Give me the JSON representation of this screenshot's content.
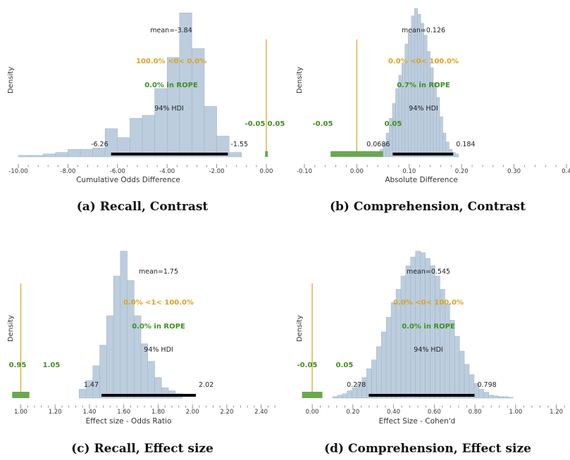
{
  "colors": {
    "bar_fill": "#bccddd",
    "bar_stroke": "#9eb3c9",
    "hdi": "#000000",
    "ref_line": "#e0ae3a",
    "rope": "#6aa84f",
    "rope_text": "#3f8f1f",
    "ref_text": "#e0a020",
    "axis_text": "#333333"
  },
  "chart_data": [
    {
      "type": "histogram",
      "panel_id": "a",
      "caption": "(a) Recall, Contrast",
      "ylabel": "Density",
      "xlabel": "Cumulative Odds Difference",
      "xlim": [
        -10.0,
        0.0
      ],
      "xticks": [
        "-10.00",
        "-8.00",
        "-6.00",
        "-4.00",
        "-2.00",
        "0.00"
      ],
      "xtick_values": [
        -10,
        -8,
        -6,
        -4,
        -2,
        0
      ],
      "bins": [
        {
          "x0": -10.0,
          "x1": -9.5,
          "d": 0.01
        },
        {
          "x0": -9.5,
          "x1": -9.0,
          "d": 0.01
        },
        {
          "x0": -9.0,
          "x1": -8.5,
          "d": 0.02
        },
        {
          "x0": -8.5,
          "x1": -8.0,
          "d": 0.03
        },
        {
          "x0": -8.0,
          "x1": -7.5,
          "d": 0.05
        },
        {
          "x0": -7.5,
          "x1": -7.0,
          "d": 0.05
        },
        {
          "x0": -7.0,
          "x1": -6.5,
          "d": 0.06
        },
        {
          "x0": -6.5,
          "x1": -6.0,
          "d": 0.19
        },
        {
          "x0": -6.0,
          "x1": -5.5,
          "d": 0.13
        },
        {
          "x0": -5.5,
          "x1": -5.0,
          "d": 0.26
        },
        {
          "x0": -5.0,
          "x1": -4.5,
          "d": 0.28
        },
        {
          "x0": -4.5,
          "x1": -4.0,
          "d": 0.46
        },
        {
          "x0": -4.0,
          "x1": -3.5,
          "d": 0.67
        },
        {
          "x0": -3.5,
          "x1": -3.0,
          "d": 0.97
        },
        {
          "x0": -3.0,
          "x1": -2.5,
          "d": 0.73
        },
        {
          "x0": -2.5,
          "x1": -2.0,
          "d": 0.34
        },
        {
          "x0": -2.0,
          "x1": -1.5,
          "d": 0.14
        },
        {
          "x0": -1.5,
          "x1": -1.0,
          "d": 0.03
        }
      ],
      "hdi": [
        -6.26,
        -1.55
      ],
      "hdi_labels": [
        "-6.26",
        "-1.55"
      ],
      "hdi_title": "94% HDI",
      "mean_label": "mean=-3.84",
      "ref_value": 0.0,
      "ref_text": "100.0% <0< 0.0%",
      "rope": [
        -0.05,
        0.05
      ],
      "rope_labels": [
        "-0.05",
        "0.05"
      ],
      "rope_text": "0.0% in ROPE"
    },
    {
      "type": "histogram",
      "panel_id": "b",
      "caption": "(b) Comprehension, Contrast",
      "ylabel": "Density",
      "xlabel": "Absolute Difference",
      "xlim": [
        -0.1,
        0.4
      ],
      "xticks": [
        "-0.10",
        "0.00",
        "0.10",
        "0.20",
        "0.30",
        "0.4"
      ],
      "xtick_values": [
        -0.1,
        0.0,
        0.1,
        0.2,
        0.3,
        0.4
      ],
      "bins_x0": 0.038,
      "bins_width": 0.006,
      "bins_density": [
        0.02,
        0.05,
        0.09,
        0.16,
        0.26,
        0.36,
        0.46,
        0.55,
        0.63,
        0.76,
        0.84,
        0.95,
        1.0,
        0.96,
        0.9,
        0.82,
        0.71,
        0.6,
        0.5,
        0.4,
        0.27,
        0.16,
        0.1,
        0.05,
        0.03,
        0.02
      ],
      "hdi": [
        0.0686,
        0.184
      ],
      "hdi_labels": [
        "0.0686",
        "0.184"
      ],
      "hdi_title": "94% HDI",
      "mean_label": "mean=0.126",
      "ref_value": 0.0,
      "ref_text": "0.0% <0< 100.0%",
      "rope": [
        -0.05,
        0.05
      ],
      "rope_labels": [
        "-0.05",
        "0.05"
      ],
      "rope_text": "0.7% in ROPE"
    },
    {
      "type": "histogram",
      "panel_id": "c",
      "caption": "(c) Recall, Effect size",
      "ylabel": "Density",
      "xlabel": "Effect size - Odds Ratio",
      "xlim": [
        0.92,
        2.5
      ],
      "xticks": [
        "1.00",
        "1.20",
        "1.40",
        "1.60",
        "1.80",
        "2.00",
        "2.20",
        "2.40"
      ],
      "xtick_values": [
        1.0,
        1.2,
        1.4,
        1.6,
        1.8,
        2.0,
        2.2,
        2.4
      ],
      "bins_x0": 1.34,
      "bins_width": 0.04,
      "bins_density": [
        0.06,
        0.12,
        0.22,
        0.36,
        0.56,
        0.83,
        1.0,
        0.8,
        0.56,
        0.37,
        0.25,
        0.14,
        0.07,
        0.05,
        0.03
      ],
      "hdi": [
        1.47,
        2.02
      ],
      "hdi_labels": [
        "1.47",
        "2.02"
      ],
      "hdi_title": "94% HDI",
      "mean_label": "mean=1.75",
      "ref_value": 1.0,
      "ref_text": "0.0% <1< 100.0%",
      "rope": [
        0.95,
        1.05
      ],
      "rope_labels": [
        "0.95",
        "1.05"
      ],
      "rope_text": "0.0% in ROPE"
    },
    {
      "type": "histogram",
      "panel_id": "d",
      "caption": "(d) Comprehension, Effect size",
      "ylabel": "Density",
      "xlabel": "Effect Size - Cohen'd",
      "xlim": [
        -0.08,
        1.25
      ],
      "xticks": [
        "0.00",
        "0.20",
        "0.40",
        "0.60",
        "0.80",
        "1.00",
        "1.20"
      ],
      "xtick_values": [
        0.0,
        0.2,
        0.4,
        0.6,
        0.8,
        1.0,
        1.2
      ],
      "bins_x0": 0.1,
      "bins_width": 0.024,
      "bins_density": [
        0.01,
        0.02,
        0.03,
        0.05,
        0.07,
        0.1,
        0.14,
        0.2,
        0.26,
        0.35,
        0.45,
        0.55,
        0.65,
        0.74,
        0.83,
        0.9,
        0.96,
        1.0,
        0.99,
        0.95,
        0.9,
        0.83,
        0.74,
        0.64,
        0.53,
        0.42,
        0.32,
        0.23,
        0.16,
        0.1,
        0.06,
        0.04,
        0.02,
        0.015,
        0.01,
        0.01,
        0.005
      ],
      "hdi": [
        0.278,
        0.798
      ],
      "hdi_labels": [
        "0.278",
        "0.798"
      ],
      "hdi_title": "94% HDI",
      "mean_label": "mean=0.545",
      "ref_value": 0.0,
      "ref_text": "0.0% <0< 100.0%",
      "rope": [
        -0.05,
        0.05
      ],
      "rope_labels": [
        "-0.05",
        "0.05"
      ],
      "rope_text": "0.0% in ROPE"
    }
  ]
}
